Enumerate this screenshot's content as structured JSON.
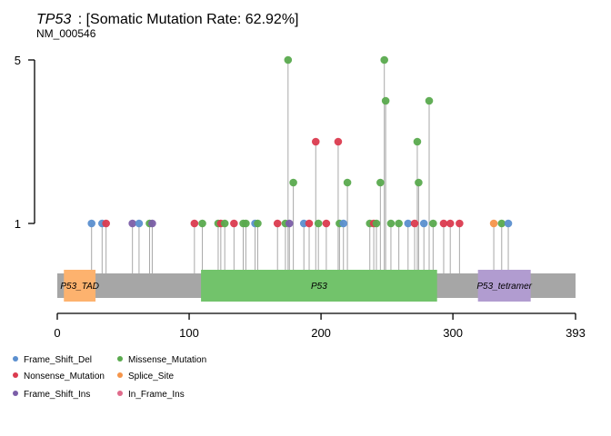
{
  "chart_data": {
    "type": "lollipop",
    "title_gene": "TP53",
    "title_rest": ": [Somatic Mutation Rate: 62.92%]",
    "subtitle": "NM_000546",
    "y_ticks": [
      1,
      5
    ],
    "y_tick_labels": [
      "1",
      "5"
    ],
    "x_range": [
      0,
      393
    ],
    "x_ticks": [
      0,
      100,
      200,
      300,
      393
    ],
    "x_tick_labels": [
      "0",
      "100",
      "200",
      "300",
      "393"
    ],
    "domains": [
      {
        "name": "P53_TAD",
        "start": 5,
        "end": 29,
        "color": "#fdb26e"
      },
      {
        "name": "P53",
        "start": 109,
        "end": 288,
        "color": "#72c36b"
      },
      {
        "name": "P53_tetramer",
        "start": 319,
        "end": 359,
        "color": "#b19cd0"
      }
    ],
    "mutations": [
      {
        "pos": 26,
        "count": 1,
        "cls": "Frame_Shift_Del"
      },
      {
        "pos": 34,
        "count": 1,
        "cls": "Frame_Shift_Del"
      },
      {
        "pos": 37,
        "count": 1,
        "cls": "Nonsense_Mutation"
      },
      {
        "pos": 57,
        "count": 1,
        "cls": "Frame_Shift_Ins"
      },
      {
        "pos": 62,
        "count": 1,
        "cls": "Frame_Shift_Del"
      },
      {
        "pos": 70,
        "count": 1,
        "cls": "Missense_Mutation"
      },
      {
        "pos": 72,
        "count": 1,
        "cls": "Frame_Shift_Ins"
      },
      {
        "pos": 104,
        "count": 1,
        "cls": "Nonsense_Mutation"
      },
      {
        "pos": 110,
        "count": 1,
        "cls": "Missense_Mutation"
      },
      {
        "pos": 122,
        "count": 1,
        "cls": "Missense_Mutation"
      },
      {
        "pos": 124,
        "count": 1,
        "cls": "Nonsense_Mutation"
      },
      {
        "pos": 127,
        "count": 1,
        "cls": "Missense_Mutation"
      },
      {
        "pos": 134,
        "count": 1,
        "cls": "Nonsense_Mutation"
      },
      {
        "pos": 141,
        "count": 1,
        "cls": "Missense_Mutation"
      },
      {
        "pos": 143,
        "count": 1,
        "cls": "Missense_Mutation"
      },
      {
        "pos": 150,
        "count": 1,
        "cls": "Frame_Shift_Del"
      },
      {
        "pos": 152,
        "count": 1,
        "cls": "Missense_Mutation"
      },
      {
        "pos": 167,
        "count": 1,
        "cls": "Nonsense_Mutation"
      },
      {
        "pos": 173,
        "count": 1,
        "cls": "Missense_Mutation"
      },
      {
        "pos": 175,
        "count": 5,
        "cls": "Missense_Mutation"
      },
      {
        "pos": 176,
        "count": 1,
        "cls": "Frame_Shift_Ins"
      },
      {
        "pos": 179,
        "count": 2,
        "cls": "Missense_Mutation"
      },
      {
        "pos": 187,
        "count": 1,
        "cls": "Frame_Shift_Del"
      },
      {
        "pos": 191,
        "count": 1,
        "cls": "Nonsense_Mutation"
      },
      {
        "pos": 196,
        "count": 3,
        "cls": "Nonsense_Mutation"
      },
      {
        "pos": 198,
        "count": 1,
        "cls": "Missense_Mutation"
      },
      {
        "pos": 204,
        "count": 1,
        "cls": "Nonsense_Mutation"
      },
      {
        "pos": 213,
        "count": 3,
        "cls": "Nonsense_Mutation"
      },
      {
        "pos": 214,
        "count": 1,
        "cls": "Missense_Mutation"
      },
      {
        "pos": 217,
        "count": 1,
        "cls": "Frame_Shift_Del"
      },
      {
        "pos": 220,
        "count": 2,
        "cls": "Missense_Mutation"
      },
      {
        "pos": 237,
        "count": 1,
        "cls": "Missense_Mutation"
      },
      {
        "pos": 240,
        "count": 1,
        "cls": "Nonsense_Mutation"
      },
      {
        "pos": 242,
        "count": 1,
        "cls": "Missense_Mutation"
      },
      {
        "pos": 245,
        "count": 2,
        "cls": "Missense_Mutation"
      },
      {
        "pos": 248,
        "count": 5,
        "cls": "Missense_Mutation"
      },
      {
        "pos": 249,
        "count": 4,
        "cls": "Missense_Mutation"
      },
      {
        "pos": 253,
        "count": 1,
        "cls": "Missense_Mutation"
      },
      {
        "pos": 259,
        "count": 1,
        "cls": "Missense_Mutation"
      },
      {
        "pos": 266,
        "count": 1,
        "cls": "Frame_Shift_Del"
      },
      {
        "pos": 271,
        "count": 1,
        "cls": "Nonsense_Mutation"
      },
      {
        "pos": 273,
        "count": 3,
        "cls": "Missense_Mutation"
      },
      {
        "pos": 274,
        "count": 2,
        "cls": "Missense_Mutation"
      },
      {
        "pos": 278,
        "count": 1,
        "cls": "Frame_Shift_Del"
      },
      {
        "pos": 282,
        "count": 4,
        "cls": "Missense_Mutation"
      },
      {
        "pos": 285,
        "count": 1,
        "cls": "Missense_Mutation"
      },
      {
        "pos": 293,
        "count": 1,
        "cls": "Nonsense_Mutation"
      },
      {
        "pos": 298,
        "count": 1,
        "cls": "Nonsense_Mutation"
      },
      {
        "pos": 305,
        "count": 1,
        "cls": "Nonsense_Mutation"
      },
      {
        "pos": 331,
        "count": 1,
        "cls": "Splice_Site"
      },
      {
        "pos": 337,
        "count": 1,
        "cls": "Missense_Mutation"
      },
      {
        "pos": 342,
        "count": 1,
        "cls": "Frame_Shift_Del"
      }
    ],
    "legend": [
      {
        "name": "Frame_Shift_Del",
        "color": "#5b8fcf"
      },
      {
        "name": "Missense_Mutation",
        "color": "#5aaa4e"
      },
      {
        "name": "Nonsense_Mutation",
        "color": "#db3b4f"
      },
      {
        "name": "Splice_Site",
        "color": "#f5954a"
      },
      {
        "name": "Frame_Shift_Ins",
        "color": "#7b5ea8"
      },
      {
        "name": "In_Frame_Ins",
        "color": "#e06b8b"
      }
    ],
    "backbone_color": "#a6a6a6",
    "stem_color": "#a8a8a8"
  }
}
